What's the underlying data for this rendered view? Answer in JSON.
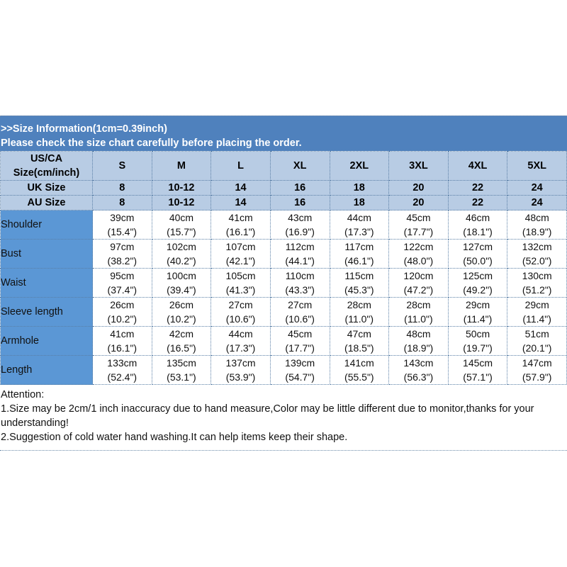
{
  "header": {
    "title": ">>Size Information(1cm=0.39inch)",
    "subtitle": "Please check the size chart carefully before placing the order."
  },
  "colors": {
    "band": "#4f81bd",
    "header_rows": "#b8cce4",
    "label_column": "#5b97d5"
  },
  "size_rows": [
    {
      "label": "US/CA Size(cm/inch)",
      "values": [
        "S",
        "M",
        "L",
        "XL",
        "2XL",
        "3XL",
        "4XL",
        "5XL"
      ]
    },
    {
      "label": "UK Size",
      "values": [
        "8",
        "10-12",
        "14",
        "16",
        "18",
        "20",
        "22",
        "24"
      ]
    },
    {
      "label": "AU Size",
      "values": [
        "8",
        "10-12",
        "14",
        "16",
        "18",
        "20",
        "22",
        "24"
      ]
    }
  ],
  "measure_rows": [
    {
      "label": "Shoulder",
      "cm": [
        "39cm",
        "40cm",
        "41cm",
        "43cm",
        "44cm",
        "45cm",
        "46cm",
        "48cm"
      ],
      "inch": [
        "(15.4\")",
        "(15.7\")",
        "(16.1\")",
        "(16.9\")",
        "(17.3\")",
        "(17.7\")",
        "(18.1\")",
        "(18.9\")"
      ]
    },
    {
      "label": "Bust",
      "cm": [
        "97cm",
        "102cm",
        "107cm",
        "112cm",
        "117cm",
        "122cm",
        "127cm",
        "132cm"
      ],
      "inch": [
        "(38.2\")",
        "(40.2\")",
        "(42.1\")",
        "(44.1\")",
        "(46.1\")",
        "(48.0\")",
        "(50.0\")",
        "(52.0\")"
      ]
    },
    {
      "label": "Waist",
      "cm": [
        "95cm",
        "100cm",
        "105cm",
        "110cm",
        "115cm",
        "120cm",
        "125cm",
        "130cm"
      ],
      "inch": [
        "(37.4\")",
        "(39.4\")",
        "(41.3\")",
        "(43.3\")",
        "(45.3\")",
        "(47.2\")",
        "(49.2\")",
        "(51.2\")"
      ]
    },
    {
      "label": "Sleeve length",
      "cm": [
        "26cm",
        "26cm",
        "27cm",
        "27cm",
        "28cm",
        "28cm",
        "29cm",
        "29cm"
      ],
      "inch": [
        "(10.2\")",
        "(10.2\")",
        "(10.6\")",
        "(10.6\")",
        "(11.0\")",
        "(11.0\")",
        "(11.4\")",
        "(11.4\")"
      ]
    },
    {
      "label": "Armhole",
      "cm": [
        "41cm",
        "42cm",
        "44cm",
        "45cm",
        "47cm",
        "48cm",
        "50cm",
        "51cm"
      ],
      "inch": [
        "(16.1\")",
        "(16.5\")",
        "(17.3\")",
        "(17.7\")",
        "(18.5\")",
        "(18.9\")",
        "(19.7\")",
        "(20.1\")"
      ]
    },
    {
      "label": "Length",
      "cm": [
        "133cm",
        "135cm",
        "137cm",
        "139cm",
        "141cm",
        "143cm",
        "145cm",
        "147cm"
      ],
      "inch": [
        "(52.4\")",
        "(53.1\")",
        "(53.9\")",
        "(54.7\")",
        "(55.5\")",
        "(56.3\")",
        "(57.1\")",
        "(57.9\")"
      ]
    }
  ],
  "notes": {
    "heading": "Attention:",
    "line1": "1.Size may be 2cm/1 inch inaccuracy due to hand measure,Color may be little different due to monitor,thanks for your understanding!",
    "line2": "2.Suggestion of cold water hand washing.It can help items keep their shape."
  }
}
